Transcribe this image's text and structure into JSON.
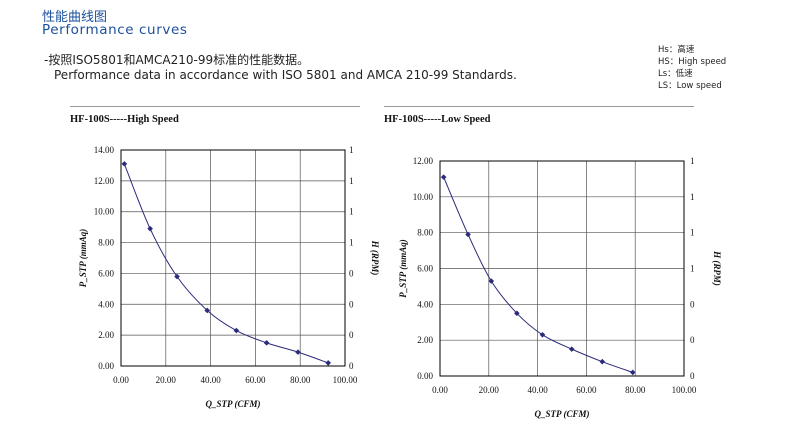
{
  "header": {
    "title_cn": "性能曲线图",
    "title_en": "Performance curves",
    "desc_cn": "-按照ISO5801和AMCA210-99标准的性能数据。",
    "desc_en": "Performance data in accordance with ISO 5801 and AMCA 210-99 Standards."
  },
  "legend": [
    "Hs：高速",
    "HS：High speed",
    "Ls：低速",
    "LS：Low speed"
  ],
  "colors": {
    "heading": "#1a4f9c",
    "curve": "#2b2b7a",
    "grid": "#555555",
    "frame": "#000000"
  },
  "chart_data": [
    {
      "type": "line",
      "title": "HF-100S-----High Speed",
      "xlabel": "Q_STP (CFM)",
      "ylabel": "P_STP (mmAq)",
      "y2label": "H (RPM)",
      "xlim": [
        0,
        100
      ],
      "ylim": [
        0,
        14
      ],
      "xticks": [
        "0.00",
        "20.00",
        "40.00",
        "60.00",
        "80.00",
        "100.00"
      ],
      "yticks": [
        "0.00",
        "2.00",
        "4.00",
        "6.00",
        "8.00",
        "10.00",
        "12.00",
        "14.00"
      ],
      "y2ticks": [
        "0",
        "0",
        "0",
        "0",
        "1",
        "1",
        "1",
        "1"
      ],
      "grid": true,
      "series": [
        {
          "x": [
            1.5,
            13,
            25,
            38.5,
            51.5,
            65,
            79,
            92.5
          ],
          "y": [
            13.1,
            8.9,
            5.8,
            3.6,
            2.3,
            1.5,
            0.9,
            0.2
          ]
        }
      ]
    },
    {
      "type": "line",
      "title": "HF-100S-----Low Speed",
      "xlabel": "Q_STP (CFM)",
      "ylabel": "P_STP (mmAq)",
      "y2label": "H (RPM)",
      "xlim": [
        0,
        100
      ],
      "ylim": [
        0,
        12
      ],
      "xticks": [
        "0.00",
        "20.00",
        "40.00",
        "60.00",
        "80.00",
        "100.00"
      ],
      "yticks": [
        "0.00",
        "2.00",
        "4.00",
        "6.00",
        "8.00",
        "10.00",
        "12.00"
      ],
      "y2ticks": [
        "0",
        "0",
        "0",
        "1",
        "1",
        "1",
        "1"
      ],
      "grid": true,
      "series": [
        {
          "x": [
            1.5,
            11.5,
            21,
            31.5,
            42,
            54,
            66.5,
            79
          ],
          "y": [
            11.1,
            7.9,
            5.3,
            3.5,
            2.3,
            1.5,
            0.8,
            0.2
          ]
        }
      ]
    }
  ]
}
